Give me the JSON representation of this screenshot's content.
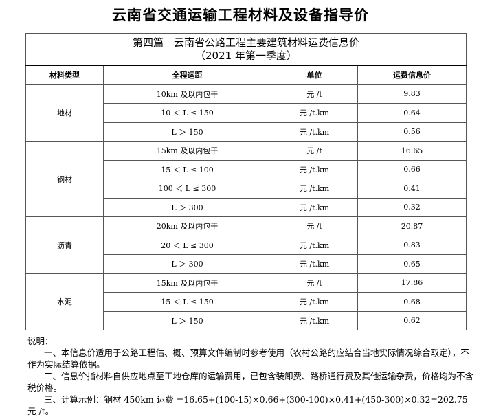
{
  "doc_title": "云南省交通运输工程材料及设备指导价",
  "table": {
    "caption_line1": "第四篇　云南省公路工程主要建筑材料运费信息价",
    "caption_line2": "（2021 年第一季度）",
    "headers": [
      "材料类型",
      "全程运距",
      "单位",
      "运费信息价"
    ],
    "groups": [
      {
        "material": "地材",
        "rows": [
          [
            "10km 及以内包干",
            "元 /t",
            "9.83"
          ],
          [
            "10 ＜ L ≤ 150",
            "元 /t.km",
            "0.64"
          ],
          [
            "L ＞ 150",
            "元 /t.km",
            "0.56"
          ]
        ]
      },
      {
        "material": "钢材",
        "rows": [
          [
            "15km 及以内包干",
            "元 /t",
            "16.65"
          ],
          [
            "15 ＜ L ≤ 100",
            "元 /t.km",
            "0.66"
          ],
          [
            "100 ＜ L ≤ 300",
            "元 /t.km",
            "0.41"
          ],
          [
            "L ＞ 300",
            "元 /t.km",
            "0.32"
          ]
        ]
      },
      {
        "material": "沥青",
        "rows": [
          [
            "20km 及以内包干",
            "元 /t",
            "20.87"
          ],
          [
            "20 ＜ L ≤ 300",
            "元 /t.km",
            "0.83"
          ],
          [
            "L ＞ 300",
            "元 /t.km",
            "0.65"
          ]
        ]
      },
      {
        "material": "水泥",
        "rows": [
          [
            "15km 及以内包干",
            "元 /t",
            "17.86"
          ],
          [
            "15 ＜ L ≤ 150",
            "元 /t.km",
            "0.68"
          ],
          [
            "L ＞ 150",
            "元 /t.km",
            "0.62"
          ]
        ]
      }
    ]
  },
  "notes": {
    "heading": "说明：",
    "items": [
      "一、本信息价适用于公路工程估、概、预算文件编制时参考使用（农村公路的应结合当地实际情况综合取定），不作为实际结算依据。",
      "二、信息价指材料自供应地点至工地仓库的运输费用，已包含装卸费、路桥通行费及其他运输杂费，价格均为不含税价格。",
      "三、计算示例：钢材 450km 运费 =16.65+(100-15)×0.66+(300-100)×0.41+(450-300)×0.32=202.75 元 /t。"
    ]
  }
}
